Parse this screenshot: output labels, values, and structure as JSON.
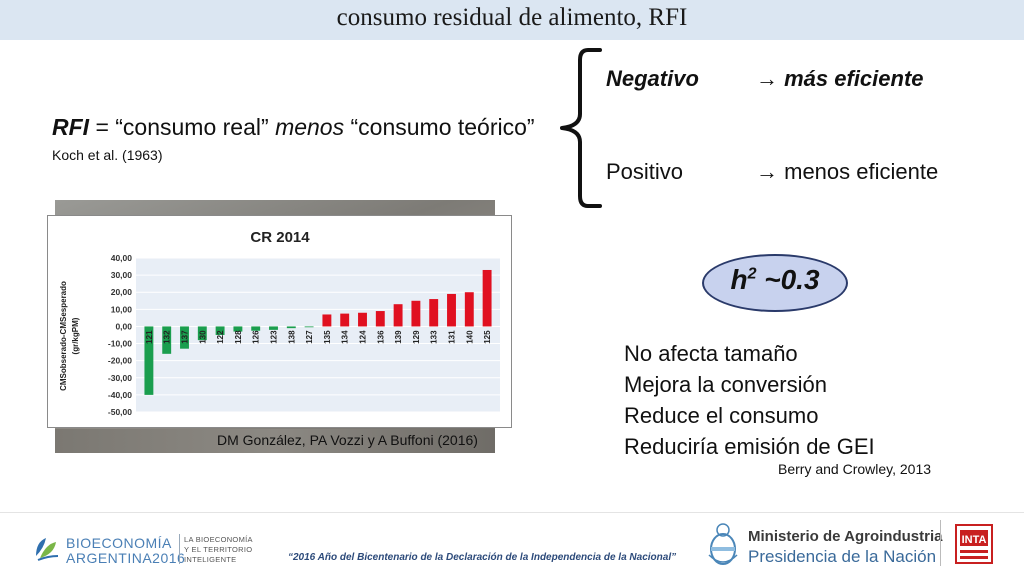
{
  "slide": {
    "title": "consumo residual de alimento, RFI",
    "definition_term": "RFI",
    "definition_mid": " = “consumo real” ",
    "definition_menos": "menos",
    "definition_end": " “consumo teórico”",
    "definition_ref": "Koch et al. (1963)",
    "negative_label": "Negativo",
    "negative_result": "→ más eficiente",
    "positive_label": "Positivo",
    "positive_result": "→ menos eficiente",
    "heritability_symbol": "h",
    "heritability_exp": "2",
    "heritability_value": " ~0.3",
    "effects": [
      "No afecta tamaño",
      "Mejora la conversión",
      "Reduce el consumo",
      "Reduciría emisión de GEI"
    ],
    "effects_ref": "Berry and Crowley, 2013",
    "chart_credit": "DM González, PA Vozzi y A Buffoni (2016)"
  },
  "footer": {
    "quote": "“2016 Año del Bicentenario de la Declaración de la Independencia de la Nacional”",
    "bio_line1": "BIOECONOMÍA",
    "bio_line2": "ARGENTINA2016",
    "bio_tag1": "LA BIOECONOMÍA",
    "bio_tag2": "Y EL TERRITORIO",
    "bio_tag3": "INTELIGENTE",
    "ministry": "Ministerio de Agroindustria",
    "presidency": "Presidencia de la Nación",
    "inta": "INTA"
  },
  "colors": {
    "negative_bar": "#1a9e4e",
    "positive_bar": "#e01020",
    "plot_bg": "#e8eef6"
  },
  "chart_data": {
    "type": "bar",
    "title": "CR 2014",
    "ylabel_line1": "CMSobserado-CMSesperado",
    "ylabel_line2": "(gr/kgPM)",
    "ylim": [
      -50,
      40
    ],
    "yticks": [
      "40,00",
      "30,00",
      "20,00",
      "10,00",
      "0,00",
      "-10,00",
      "-20,00",
      "-30,00",
      "-40,00",
      "-50,00"
    ],
    "ytick_values": [
      40,
      30,
      20,
      10,
      0,
      -10,
      -20,
      -30,
      -40,
      -50
    ],
    "categories": [
      "121",
      "132",
      "137",
      "130",
      "122",
      "128",
      "126",
      "123",
      "138",
      "127",
      "135",
      "134",
      "124",
      "136",
      "139",
      "129",
      "133",
      "131",
      "140",
      "125"
    ],
    "values": [
      -40,
      -16,
      -13,
      -8,
      -5,
      -3,
      -2.5,
      -2,
      -1,
      -0.3,
      7,
      7.5,
      8,
      9,
      13,
      15,
      16,
      19,
      20,
      33
    ],
    "grid": true
  }
}
